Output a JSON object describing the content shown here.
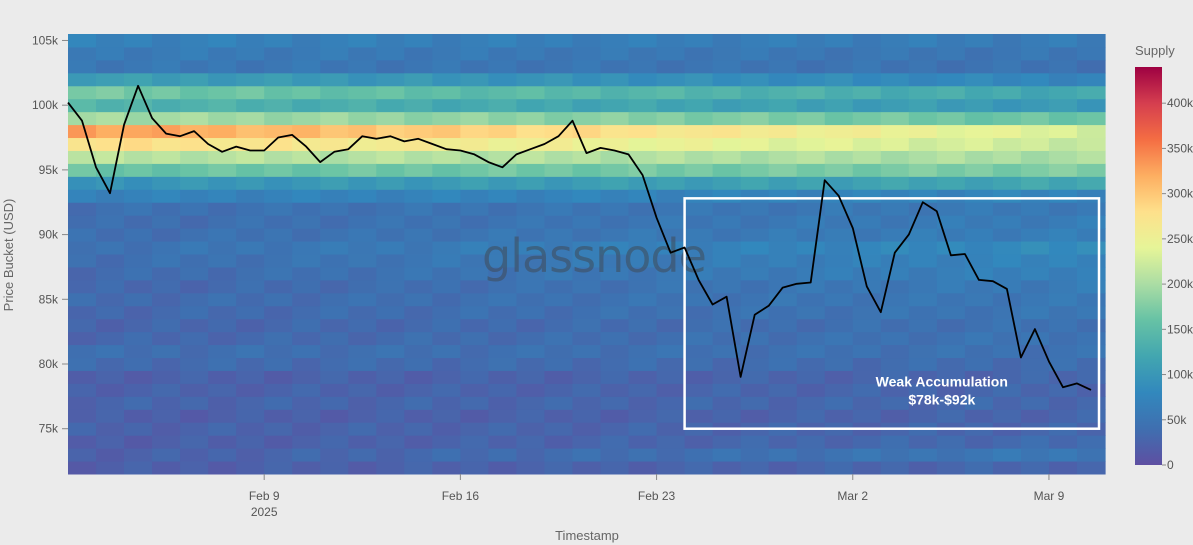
{
  "chart_data": {
    "type": "heatmap",
    "title": "",
    "xlabel": "Timestamp",
    "ylabel": "Price Bucket (USD)",
    "xlim": [
      "2025-02-02",
      "2025-03-11"
    ],
    "ylim": [
      71500,
      105500
    ],
    "x_ticks": [
      {
        "date": "2025-02-09",
        "label": "Feb 9",
        "sublabel": "2025"
      },
      {
        "date": "2025-02-16",
        "label": "Feb 16",
        "sublabel": ""
      },
      {
        "date": "2025-02-23",
        "label": "Feb 23",
        "sublabel": ""
      },
      {
        "date": "2025-03-02",
        "label": "Mar 2",
        "sublabel": ""
      },
      {
        "date": "2025-03-09",
        "label": "Mar 9",
        "sublabel": ""
      }
    ],
    "y_ticks": [
      {
        "value": 75000,
        "label": "75k"
      },
      {
        "value": 80000,
        "label": "80k"
      },
      {
        "value": 85000,
        "label": "85k"
      },
      {
        "value": 90000,
        "label": "90k"
      },
      {
        "value": 95000,
        "label": "95k"
      },
      {
        "value": 100000,
        "label": "100k"
      },
      {
        "value": 105000,
        "label": "105k"
      }
    ],
    "colorbar": {
      "title": "Supply",
      "range": [
        0,
        440000
      ],
      "ticks": [
        {
          "value": 0,
          "label": "0"
        },
        {
          "value": 50000,
          "label": "50k"
        },
        {
          "value": 100000,
          "label": "100k"
        },
        {
          "value": 150000,
          "label": "150k"
        },
        {
          "value": 200000,
          "label": "200k"
        },
        {
          "value": 250000,
          "label": "250k"
        },
        {
          "value": 300000,
          "label": "300k"
        },
        {
          "value": 350000,
          "label": "350k"
        },
        {
          "value": 400000,
          "label": "400k"
        }
      ],
      "colors": [
        "#5e4fa2",
        "#3f6fb0",
        "#3288bd",
        "#42a6b0",
        "#66c2a5",
        "#abdda4",
        "#e6f598",
        "#fee08b",
        "#fdae61",
        "#f46d43",
        "#d53e4f",
        "#9e0142"
      ]
    },
    "heatmap": {
      "bucket_size": 1000,
      "supply_by_bucket": [
        {
          "price": 72000,
          "early": 20000,
          "late": 30000
        },
        {
          "price": 73000,
          "early": 22000,
          "late": 55000
        },
        {
          "price": 74000,
          "early": 20000,
          "late": 35000
        },
        {
          "price": 75000,
          "early": 25000,
          "late": 30000
        },
        {
          "price": 76000,
          "early": 20000,
          "late": 28000
        },
        {
          "price": 77000,
          "early": 28000,
          "late": 32000
        },
        {
          "price": 78000,
          "early": 24000,
          "late": 30000
        },
        {
          "price": 79000,
          "early": 22000,
          "late": 30000
        },
        {
          "price": 80000,
          "early": 35000,
          "late": 38000
        },
        {
          "price": 81000,
          "early": 40000,
          "late": 45000
        },
        {
          "price": 82000,
          "early": 30000,
          "late": 48000
        },
        {
          "price": 83000,
          "early": 28000,
          "late": 45000
        },
        {
          "price": 84000,
          "early": 32000,
          "late": 52000
        },
        {
          "price": 85000,
          "early": 35000,
          "late": 55000
        },
        {
          "price": 86000,
          "early": 30000,
          "late": 60000
        },
        {
          "price": 87000,
          "early": 35000,
          "late": 70000
        },
        {
          "price": 88000,
          "early": 40000,
          "late": 75000
        },
        {
          "price": 89000,
          "early": 45000,
          "late": 85000
        },
        {
          "price": 90000,
          "early": 40000,
          "late": 65000
        },
        {
          "price": 91000,
          "early": 38000,
          "late": 62000
        },
        {
          "price": 92000,
          "early": 42000,
          "late": 58000
        },
        {
          "price": 93000,
          "early": 70000,
          "late": 75000
        },
        {
          "price": 94000,
          "early": 95000,
          "late": 120000
        },
        {
          "price": 95000,
          "early": 160000,
          "late": 175000
        },
        {
          "price": 96000,
          "early": 210000,
          "late": 200000
        },
        {
          "price": 97000,
          "early": 280000,
          "late": 220000
        },
        {
          "price": 98000,
          "early": 330000,
          "late": 230000
        },
        {
          "price": 99000,
          "early": 200000,
          "late": 160000
        },
        {
          "price": 100000,
          "early": 140000,
          "late": 100000
        },
        {
          "price": 101000,
          "early": 170000,
          "late": 120000
        },
        {
          "price": 102000,
          "early": 110000,
          "late": 75000
        },
        {
          "price": 103000,
          "early": 55000,
          "late": 45000
        },
        {
          "price": 104000,
          "early": 60000,
          "late": 50000
        },
        {
          "price": 105000,
          "early": 70000,
          "late": 60000
        }
      ]
    },
    "series": [
      {
        "type": "line",
        "x": [
          "2025-02-02",
          "2025-02-02T12:00",
          "2025-02-03",
          "2025-02-03T12:00",
          "2025-02-04",
          "2025-02-04T12:00",
          "2025-02-05",
          "2025-02-05T12:00",
          "2025-02-06",
          "2025-02-06T12:00",
          "2025-02-07",
          "2025-02-07T12:00",
          "2025-02-08",
          "2025-02-08T12:00",
          "2025-02-09",
          "2025-02-09T12:00",
          "2025-02-10",
          "2025-02-10T12:00",
          "2025-02-11",
          "2025-02-11T12:00",
          "2025-02-12",
          "2025-02-12T12:00",
          "2025-02-13",
          "2025-02-13T12:00",
          "2025-02-14",
          "2025-02-14T12:00",
          "2025-02-15",
          "2025-02-15T12:00",
          "2025-02-16",
          "2025-02-16T12:00",
          "2025-02-17",
          "2025-02-17T12:00",
          "2025-02-18",
          "2025-02-18T12:00",
          "2025-02-19",
          "2025-02-19T12:00",
          "2025-02-20",
          "2025-02-20T12:00",
          "2025-02-21",
          "2025-02-21T12:00",
          "2025-02-22",
          "2025-02-22T12:00",
          "2025-02-23",
          "2025-02-23T12:00",
          "2025-02-24",
          "2025-02-24T12:00",
          "2025-02-25",
          "2025-02-25T12:00",
          "2025-02-26",
          "2025-02-26T12:00",
          "2025-02-27",
          "2025-02-27T12:00",
          "2025-02-28",
          "2025-02-28T12:00",
          "2025-03-01",
          "2025-03-01T12:00",
          "2025-03-02",
          "2025-03-02T12:00",
          "2025-03-03",
          "2025-03-03T12:00",
          "2025-03-04",
          "2025-03-04T12:00",
          "2025-03-05",
          "2025-03-05T12:00",
          "2025-03-06",
          "2025-03-06T12:00",
          "2025-03-07",
          "2025-03-07T12:00",
          "2025-03-08",
          "2025-03-08T12:00",
          "2025-03-09",
          "2025-03-09T12:00",
          "2025-03-10",
          "2025-03-10T12:00"
        ],
        "y": [
          100200,
          98800,
          95200,
          93200,
          98500,
          101500,
          99000,
          97800,
          97600,
          98000,
          97000,
          96400,
          96800,
          96500,
          96500,
          97500,
          97700,
          96800,
          95600,
          96400,
          96600,
          97600,
          97400,
          97600,
          97200,
          97400,
          97000,
          96600,
          96500,
          96200,
          95600,
          95200,
          96200,
          96600,
          97000,
          97600,
          98800,
          96300,
          96700,
          96500,
          96200,
          94600,
          91300,
          88600,
          89000,
          86500,
          84600,
          85200,
          79000,
          83800,
          84500,
          85900,
          86200,
          86300,
          94200,
          93000,
          90500,
          86000,
          84000,
          88600,
          90000,
          92500,
          91800,
          88400,
          88500,
          86500,
          86400,
          85800,
          80500,
          82700,
          80200,
          78200,
          78500,
          78000
        ],
        "color": "#000000"
      }
    ],
    "annotations": [
      {
        "text_line1": "Weak Accumulation",
        "text_line2": "$78k-$92k",
        "x_range": [
          "2025-02-24",
          "2025-03-11"
        ],
        "y_range": [
          75000,
          92800
        ],
        "box_color": "#ffffff"
      }
    ],
    "grid": false,
    "watermark": "glassnode",
    "legend": "right"
  }
}
